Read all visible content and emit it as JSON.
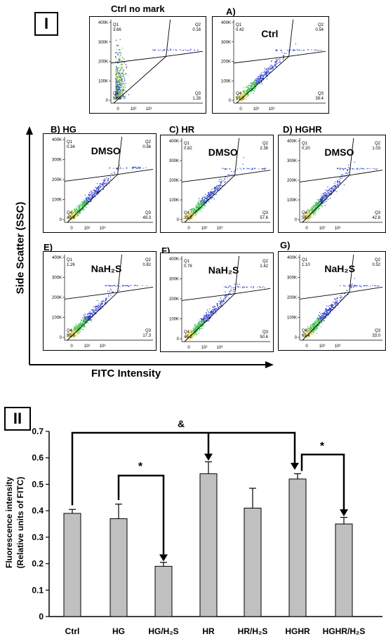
{
  "colors": {
    "bar_fill": "#c0c0c0",
    "scatter_blue": "#2d3fcf",
    "scatter_green": "#3fbf4f",
    "scatter_yellow": "#e0d14a"
  },
  "panel_one": {
    "label": "I",
    "plots": [
      {
        "id": "ctrl-no-mark",
        "header": "Ctrl no mark",
        "center_text": "",
        "q1": "3.66",
        "q2": "0.18",
        "q3": "1.28",
        "q4": "94.9"
      },
      {
        "id": "ctrl",
        "header": "A)",
        "center_text": "Ctrl",
        "q1": "0.42",
        "q2": "0.54",
        "q3": "39.4",
        "q4": "59.6"
      },
      {
        "id": "hg-dmso",
        "header": "B)   HG",
        "center_text": "DMSO",
        "q1": "0.34",
        "q2": "0.56",
        "q3": "49.3",
        "q4": "49.8"
      },
      {
        "id": "hr-dmso",
        "header": "C)   HR",
        "center_text": "DMSO",
        "q1": "0.82",
        "q2": "2.38",
        "q3": "57.6",
        "q4": "39.2"
      },
      {
        "id": "hghr-dmso",
        "header": "D)   HGHR",
        "center_text": "DMSO",
        "q1": "0.20",
        "q2": "1.03",
        "q3": "42.8",
        "q4": "56.0"
      },
      {
        "id": "hg-nah2s",
        "header": "E)",
        "center_text": "NaH₂S",
        "q1": "1.26",
        "q2": "0.82",
        "q3": "17.3",
        "q4": "80.6"
      },
      {
        "id": "hr-nah2s",
        "header": "F)",
        "center_text": "NaH₂S",
        "q1": "0.76",
        "q2": "2.42",
        "q3": "50.6",
        "q4": "46.2"
      },
      {
        "id": "hghr-nah2s",
        "header": "G)",
        "center_text": "NaH₂S",
        "q1": "1.10",
        "q2": "0.52",
        "q3": "33.0",
        "q4": "65.4"
      }
    ],
    "quadrant_names": {
      "q1": "Q1",
      "q2": "Q2",
      "q3": "Q3",
      "q4": "Q4"
    },
    "y_ticks": [
      "400K",
      "300K",
      "200K",
      "100K",
      "0"
    ],
    "x_ticks": [
      "0",
      "10²",
      "10³"
    ],
    "y_axis_label": "Side Scatter (SSC)",
    "x_axis_label": "FITC Intensity"
  },
  "panel_two": {
    "label": "II",
    "significance": {
      "amp": "&",
      "star1": "*",
      "star2": "*"
    }
  },
  "chart_data": {
    "type": "bar",
    "categories": [
      "Ctrl",
      "HG",
      "HG/H₂S",
      "HR",
      "HR/H₂S",
      "HGHR",
      "HGHR/H₂S"
    ],
    "values": [
      0.39,
      0.37,
      0.19,
      0.54,
      0.41,
      0.52,
      0.35
    ],
    "errors": [
      0.015,
      0.055,
      0.015,
      0.045,
      0.075,
      0.02,
      0.025
    ],
    "title": "",
    "xlabel": "",
    "ylabel": "Fluorescence intensity (Relative units of FITC)",
    "ylim": [
      0,
      0.7
    ],
    "yticks": [
      "0",
      "0.1",
      "0.2",
      "0.3",
      "0.4",
      "0.5",
      "0.6",
      "0.7"
    ],
    "grid": false
  }
}
